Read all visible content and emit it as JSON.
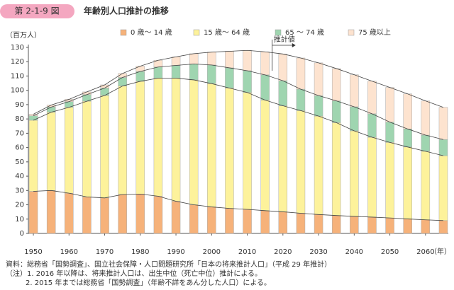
{
  "header": {
    "label": "第 2-1-9 図",
    "title": "年齢別人口推計の推移"
  },
  "chart_data": {
    "type": "stacked-bar",
    "y_label": "（百万人）",
    "x_label": "（年）",
    "x": [
      1950,
      1955,
      1960,
      1965,
      1970,
      1975,
      1980,
      1985,
      1990,
      1995,
      2000,
      2005,
      2010,
      2015,
      2020,
      2025,
      2030,
      2035,
      2040,
      2045,
      2050,
      2055,
      2060,
      2065
    ],
    "xlim": [
      1948.6,
      2066.4
    ],
    "xticks": [
      1950,
      1960,
      1970,
      1980,
      1990,
      2000,
      2010,
      2020,
      2030,
      2040,
      2050,
      2060
    ],
    "ylim": [
      0,
      130
    ],
    "yticks": [
      0,
      10,
      20,
      30,
      40,
      50,
      60,
      70,
      80,
      90,
      100,
      110,
      120,
      130
    ],
    "annotation": {
      "text": "推計値",
      "x": 2017
    },
    "series": [
      {
        "name": "0 歳〜 14 歳",
        "color": "#f6b27a",
        "values": [
          29.4,
          30.0,
          28.1,
          25.5,
          24.8,
          27.2,
          27.5,
          26.0,
          22.5,
          20.0,
          18.5,
          17.5,
          16.8,
          15.9,
          15.1,
          14.1,
          13.2,
          12.5,
          11.9,
          11.4,
          10.8,
          10.1,
          9.5,
          9.0
        ]
      },
      {
        "name": "15 歳〜 64 歳",
        "color": "#fdf29b",
        "values": [
          49.7,
          54.7,
          60.0,
          66.9,
          71.6,
          75.8,
          78.8,
          82.5,
          86.0,
          87.3,
          86.2,
          84.1,
          81.7,
          77.3,
          74.1,
          71.7,
          68.8,
          64.9,
          59.8,
          55.8,
          52.8,
          50.3,
          47.9,
          45.3
        ]
      },
      {
        "name": "65 〜 74 歳",
        "color": "#9fd5b0",
        "values": [
          3.1,
          3.6,
          4.0,
          4.6,
          5.2,
          6.0,
          6.9,
          7.8,
          8.9,
          11.1,
          13.0,
          14.1,
          15.2,
          17.6,
          17.5,
          15.0,
          14.3,
          15.2,
          16.8,
          16.4,
          14.2,
          12.6,
          11.3,
          11.3
        ]
      },
      {
        "name": "75 歳以上",
        "color": "#fde3cf",
        "values": [
          1.1,
          1.4,
          1.6,
          1.9,
          2.2,
          2.8,
          3.7,
          4.7,
          6.0,
          7.2,
          9.0,
          11.6,
          14.2,
          16.1,
          18.7,
          21.8,
          22.9,
          22.6,
          22.4,
          22.8,
          24.2,
          24.5,
          23.9,
          22.5
        ]
      }
    ]
  },
  "notes": [
    "資料：総務省「国勢調査」、国立社会保障・人口問題研究所「日本の将来推計人口」（平成 29 年推計）",
    "（注）1. 2016 年以降は、将来推計人口は、出生中位（死亡中位）推計による。",
    "2. 2015 年までは総務省「国勢調査」（年齢不詳をあん分した人口）による。"
  ]
}
